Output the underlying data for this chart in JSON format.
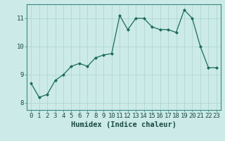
{
  "x": [
    0,
    1,
    2,
    3,
    4,
    5,
    6,
    7,
    8,
    9,
    10,
    11,
    12,
    13,
    14,
    15,
    16,
    17,
    18,
    19,
    20,
    21,
    22,
    23
  ],
  "y": [
    8.7,
    8.2,
    8.3,
    8.8,
    9.0,
    9.3,
    9.4,
    9.3,
    9.6,
    9.7,
    9.75,
    11.1,
    10.6,
    11.0,
    11.0,
    10.7,
    10.6,
    10.6,
    10.5,
    11.3,
    11.0,
    10.0,
    9.25,
    9.25
  ],
  "line_color": "#1a6b5a",
  "marker_color": "#1a6b5a",
  "bg_color": "#cceae8",
  "grid_color": "#aad4d0",
  "xlabel": "Humidex (Indice chaleur)",
  "xlim": [
    -0.5,
    23.5
  ],
  "ylim": [
    7.75,
    11.5
  ],
  "yticks": [
    8,
    9,
    10,
    11
  ],
  "xticks": [
    0,
    1,
    2,
    3,
    4,
    5,
    6,
    7,
    8,
    9,
    10,
    11,
    12,
    13,
    14,
    15,
    16,
    17,
    18,
    19,
    20,
    21,
    22,
    23
  ],
  "xlabel_fontsize": 7.5,
  "tick_fontsize": 6.5
}
